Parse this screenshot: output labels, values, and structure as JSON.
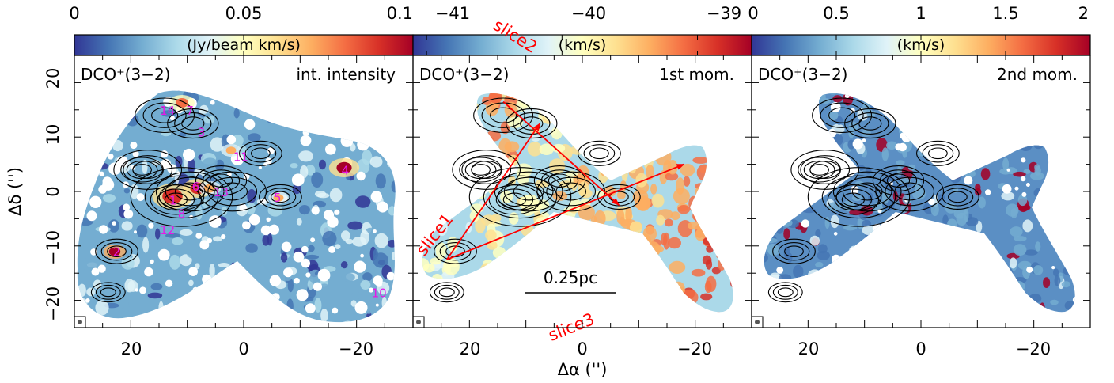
{
  "chart_data": [
    {
      "type": "heatmap",
      "panel_label": "DCO⁺(3−2)",
      "corner_label": "int. intensity",
      "colorbar": {
        "ticks": [
          "0",
          "0.05",
          "0.1"
        ],
        "range": [
          0,
          0.1
        ],
        "unit": "(Jy/beam km/s)"
      },
      "xlim": [
        30,
        -30
      ],
      "ylim": [
        -25,
        25
      ],
      "x_ticks": [
        "20",
        "0",
        "−20"
      ],
      "y_ticks": [
        "20",
        "10",
        "0",
        "−10",
        "−20"
      ],
      "source_labels": [
        {
          "text": "14",
          "x": 13.5,
          "y": 15.0
        },
        {
          "text": "7",
          "x": 9.5,
          "y": 15.0
        },
        {
          "text": "3",
          "x": 7.5,
          "y": 11.0
        },
        {
          "text": "11",
          "x": 0.5,
          "y": 6.5
        },
        {
          "text": "4",
          "x": -18.0,
          "y": 4.0
        },
        {
          "text": "6",
          "x": 8.5,
          "y": 1.0
        },
        {
          "text": "13",
          "x": 4.0,
          "y": 0.0
        },
        {
          "text": "1",
          "x": 12.5,
          "y": -1.5
        },
        {
          "text": "8",
          "x": 11.0,
          "y": -4.0
        },
        {
          "text": "5",
          "x": -6.0,
          "y": -1.0
        },
        {
          "text": "12",
          "x": 13.5,
          "y": -7.0
        },
        {
          "text": "2",
          "x": 22.5,
          "y": -11.0
        },
        {
          "text": "10",
          "x": -24.0,
          "y": -18.5
        }
      ]
    },
    {
      "type": "heatmap",
      "panel_label": "DCO⁺(3−2)",
      "corner_label": "1st mom.",
      "colorbar": {
        "ticks": [
          "−41",
          "−40",
          "−39"
        ],
        "range": [
          -41.1,
          -38.6
        ],
        "unit": "(km/s)"
      },
      "xlim": [
        30,
        -30
      ],
      "ylim": [
        -25,
        25
      ],
      "x_ticks": [
        "20",
        "0",
        "−20"
      ],
      "scalebar": "0.25pc",
      "slices": [
        {
          "name": "slice1",
          "from": [
            24,
            -12.5
          ],
          "to": [
            7.5,
            12.5
          ]
        },
        {
          "name": "slice2",
          "from": [
            14,
            16.5
          ],
          "to": [
            -6.5,
            -2.5
          ]
        },
        {
          "name": "slice3",
          "from": [
            24,
            -12.5
          ],
          "to": [
            -18,
            5
          ]
        }
      ]
    },
    {
      "type": "heatmap",
      "panel_label": "DCO⁺(3−2)",
      "corner_label": "2nd mom.",
      "colorbar": {
        "ticks": [
          "0",
          "0.5",
          "1",
          "1.5",
          "2"
        ],
        "range": [
          0,
          2
        ],
        "unit": "(km/s)"
      },
      "xlim": [
        30,
        -30
      ],
      "ylim": [
        -25,
        25
      ],
      "x_ticks": [
        "20",
        "0",
        "−20"
      ]
    }
  ],
  "xlabel": "Δα ('')",
  "ylabel": "Δδ ('')",
  "colors": {
    "colormap": [
      "#313695",
      "#4575b4",
      "#74add1",
      "#abd9e9",
      "#e0f3f8",
      "#ffffbf",
      "#fee090",
      "#fdae61",
      "#f46d43",
      "#d73027",
      "#a50026"
    ],
    "contour": "#000000",
    "source_label": "#e619e6",
    "slice": "#ff0000"
  }
}
